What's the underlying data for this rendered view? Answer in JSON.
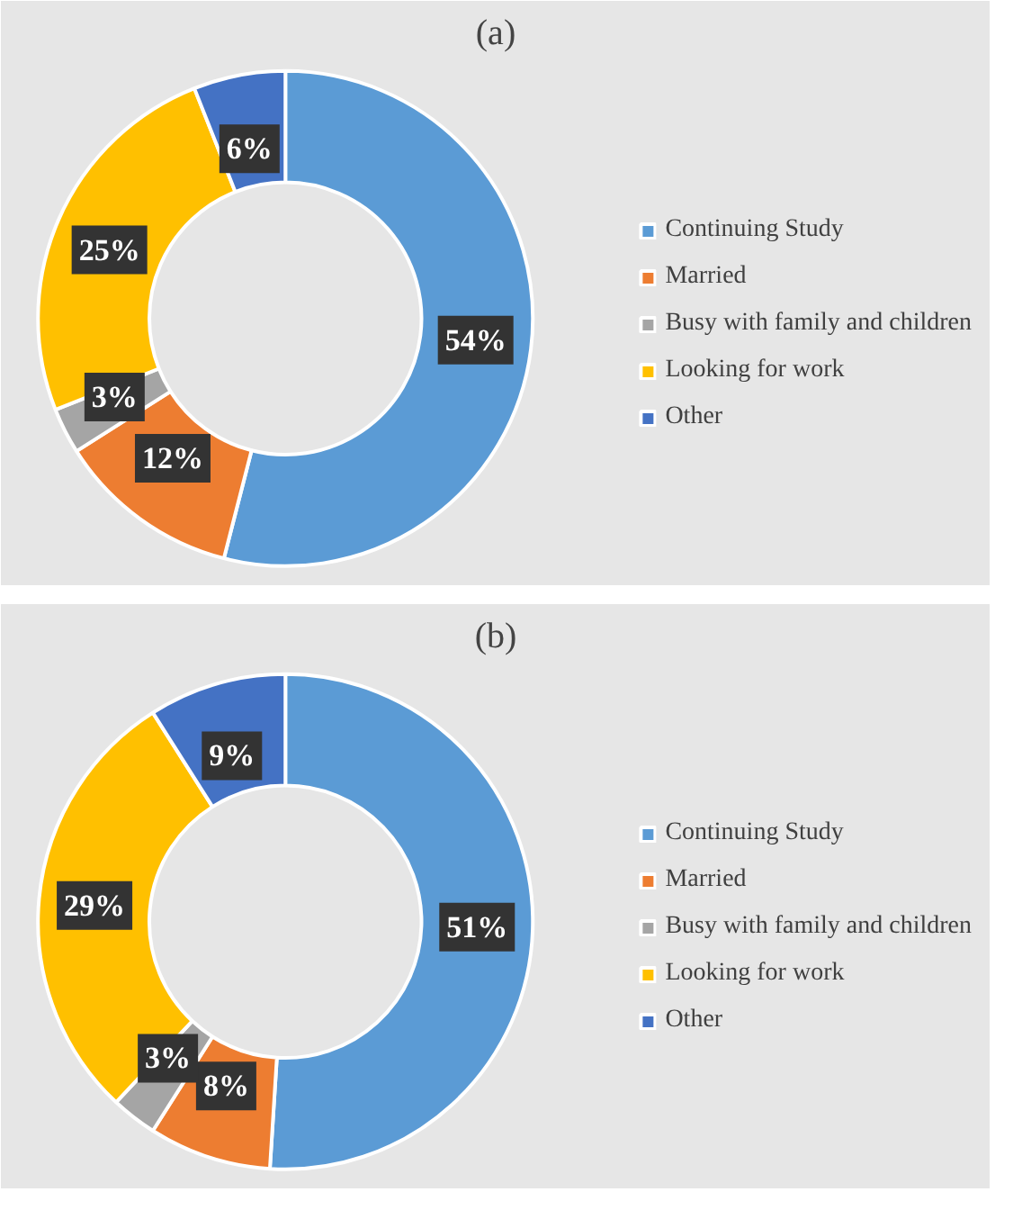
{
  "chart_data": [
    {
      "type": "donut",
      "title": "(a)",
      "categories": [
        "Continuing Study",
        "Married",
        "Busy with family and children",
        "Looking for work",
        "Other"
      ],
      "values": [
        54,
        12,
        3,
        25,
        6
      ],
      "value_labels": [
        "54%",
        "12%",
        "3%",
        "25%",
        "6%"
      ],
      "colors": [
        "#5b9bd5",
        "#ed7d31",
        "#a5a5a5",
        "#ffc000",
        "#4472c4"
      ],
      "legend": "right"
    },
    {
      "type": "donut",
      "title": "(b)",
      "categories": [
        "Continuing Study",
        "Married",
        "Busy with family and children",
        "Looking for work",
        "Other"
      ],
      "values": [
        51,
        8,
        3,
        29,
        9
      ],
      "value_labels": [
        "51%",
        "8%",
        "3%",
        "29%",
        "9%"
      ],
      "colors": [
        "#5b9bd5",
        "#ed7d31",
        "#a5a5a5",
        "#ffc000",
        "#4472c4"
      ],
      "legend": "right"
    }
  ]
}
